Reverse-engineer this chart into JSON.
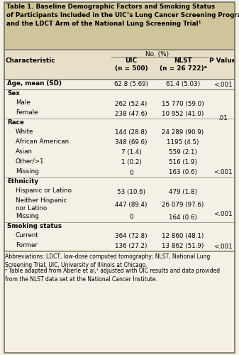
{
  "title": "Table 1. Baseline Demographic Factors and Smoking Status\nof Participants Included in the UIC’s Lung Cancer Screening Program\nand the LDCT Arm of the National Lung Screening Trial¹",
  "header_no_pct": "No. (%)",
  "col_headers": [
    "UIC\n(n = 500)",
    "NLST\n(n = 26 722)ᵃ",
    "P Value"
  ],
  "char_header": "Characteristic",
  "rows": [
    {
      "label": "Age, mean (SD)",
      "indent": false,
      "uic": "62.8 (5.69)",
      "nlst": "61.4 (5.03)",
      "pval": "<.001",
      "pval_span": 1,
      "section_header": false
    },
    {
      "label": "Sex",
      "indent": false,
      "uic": "",
      "nlst": "",
      "pval": "",
      "pval_span": 0,
      "section_header": true
    },
    {
      "label": "Male",
      "indent": true,
      "uic": "262 (52.4)",
      "nlst": "15 770 (59.0)",
      "pval": "",
      "pval_span": 0,
      "section_header": false
    },
    {
      "label": "Female",
      "indent": true,
      "uic": "238 (47.6)",
      "nlst": "10 952 (41.0)",
      "pval": ".01",
      "pval_span": 2,
      "section_header": false
    },
    {
      "label": "Race",
      "indent": false,
      "uic": "",
      "nlst": "",
      "pval": "",
      "pval_span": 0,
      "section_header": true
    },
    {
      "label": "White",
      "indent": true,
      "uic": "144 (28.8)",
      "nlst": "24 289 (90.9)",
      "pval": "",
      "pval_span": 0,
      "section_header": false
    },
    {
      "label": "African American",
      "indent": true,
      "uic": "348 (69.6)",
      "nlst": "1195 (4.5)",
      "pval": "",
      "pval_span": 0,
      "section_header": false
    },
    {
      "label": "Asian",
      "indent": true,
      "uic": "7 (1.4)",
      "nlst": "559 (2.1)",
      "pval": "<.001",
      "pval_span": 5,
      "section_header": false
    },
    {
      "label": "Other/>1",
      "indent": true,
      "uic": "1 (0.2)",
      "nlst": "516 (1.9)",
      "pval": "",
      "pval_span": 0,
      "section_header": false
    },
    {
      "label": "Missing",
      "indent": true,
      "uic": "0",
      "nlst": "163 (0.6)",
      "pval": "",
      "pval_span": 0,
      "section_header": false
    },
    {
      "label": "Ethnicity",
      "indent": false,
      "uic": "",
      "nlst": "",
      "pval": "",
      "pval_span": 0,
      "section_header": true
    },
    {
      "label": "Hispanic or Latino",
      "indent": true,
      "uic": "53 (10.6)",
      "nlst": "479 (1.8)",
      "pval": "",
      "pval_span": 0,
      "section_header": false
    },
    {
      "label": "Neither Hispanic\nnor Latino",
      "indent": true,
      "uic": "447 (89.4)",
      "nlst": "26 079 (97.6)",
      "pval": "<.001",
      "pval_span": 3,
      "section_header": false
    },
    {
      "label": "Missing",
      "indent": true,
      "uic": "0",
      "nlst": "164 (0.6)",
      "pval": "",
      "pval_span": 0,
      "section_header": false
    },
    {
      "label": "Smoking status",
      "indent": false,
      "uic": "",
      "nlst": "",
      "pval": "",
      "pval_span": 0,
      "section_header": true
    },
    {
      "label": "Current",
      "indent": true,
      "uic": "364 (72.8)",
      "nlst": "12 860 (48.1)",
      "pval": "",
      "pval_span": 0,
      "section_header": false
    },
    {
      "label": "Former",
      "indent": true,
      "uic": "136 (27.2)",
      "nlst": "13 862 (51.9)",
      "pval": "<.001",
      "pval_span": 2,
      "section_header": false
    }
  ],
  "footnote1": "Abbreviations: LDCT, low-dose computed tomography; NLST, National Lung\nScreening Trial; UIC, University of Illinois at Chicago.",
  "footnote2": "ᵃ Table adapted from Aberle et al,¹ adjusted with UIC results and data provided\nfrom the NLST data set at the National Cancer Institute.",
  "bg_color": "#f5f0e6",
  "header_bg": "#e8dfc8",
  "title_bg": "#cfc49a",
  "border_color": "#7a7a6a",
  "text_color": "#000000"
}
